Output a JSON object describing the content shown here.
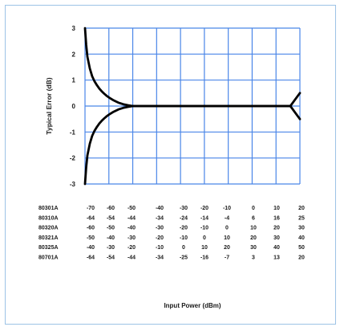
{
  "chart_data": {
    "type": "line",
    "title": "",
    "ylabel": "Typical Error (dB)",
    "xlabel": "Input Power (dBm)",
    "ylim": [
      -3,
      3
    ],
    "y_ticks": [
      "3",
      "2",
      "1",
      "0",
      "-1",
      "-2",
      "-3"
    ],
    "x_divisions": 9,
    "grid": true,
    "colors": {
      "grid": "#4a86e8",
      "curve": "#000000",
      "frame": "#9dc3e6"
    },
    "x": [
      -70,
      -69.5,
      -69,
      -68,
      -67,
      -66,
      -65,
      -64,
      -63,
      -62,
      -61,
      -60,
      -58,
      -56,
      -54,
      -52,
      -50,
      -45,
      -40,
      -30,
      -20,
      -10,
      0,
      10,
      12,
      14,
      16,
      18,
      20
    ],
    "series": [
      {
        "values": [
          3.0,
          2.35,
          1.9,
          1.45,
          1.15,
          0.95,
          0.8,
          0.67,
          0.57,
          0.48,
          0.4,
          0.33,
          0.22,
          0.13,
          0.07,
          0.03,
          0.0,
          0.0,
          0.0,
          0.0,
          0.0,
          0.0,
          0.0,
          0.0,
          0.0,
          0.0,
          0.0,
          0.25,
          0.5
        ]
      },
      {
        "values": [
          -3.0,
          -2.35,
          -1.9,
          -1.45,
          -1.15,
          -0.95,
          -0.8,
          -0.67,
          -0.57,
          -0.48,
          -0.4,
          -0.33,
          -0.22,
          -0.13,
          -0.07,
          -0.03,
          0.0,
          0.0,
          0.0,
          0.0,
          0.0,
          0.0,
          0.0,
          0.0,
          0.0,
          0.0,
          0.0,
          -0.25,
          -0.5
        ]
      }
    ],
    "axis_table": [
      {
        "model": "80301A",
        "values": [
          "-70",
          "-60",
          "-50",
          "-40",
          "-30",
          "-20",
          "-10",
          "0",
          "10",
          "20"
        ]
      },
      {
        "model": "80310A",
        "values": [
          "-64",
          "-54",
          "-44",
          "-34",
          "-24",
          "-14",
          "-4",
          "6",
          "16",
          "25"
        ]
      },
      {
        "model": "80320A",
        "values": [
          "-60",
          "-50",
          "-40",
          "-30",
          "-20",
          "-10",
          "0",
          "10",
          "20",
          "30"
        ]
      },
      {
        "model": "80321A",
        "values": [
          "-50",
          "-40",
          "-30",
          "-20",
          "-10",
          "0",
          "10",
          "20",
          "30",
          "40"
        ]
      },
      {
        "model": "80325A",
        "values": [
          "-40",
          "-30",
          "-20",
          "-10",
          "0",
          "10",
          "20",
          "30",
          "40",
          "50"
        ]
      },
      {
        "model": "80701A",
        "values": [
          "-64",
          "-54",
          "-44",
          "-34",
          "-25",
          "-16",
          "-7",
          "3",
          "13",
          "20"
        ]
      }
    ]
  }
}
